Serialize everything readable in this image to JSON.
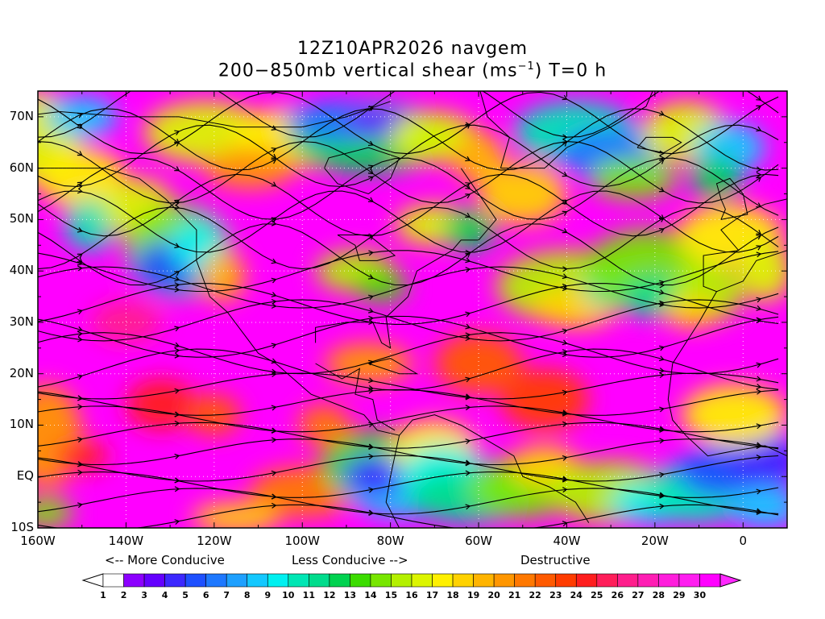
{
  "title": {
    "line1": "12Z10APR2026 navgem",
    "line2_prefix": "200−850mb vertical shear (ms",
    "line2_sup": "−1",
    "line2_suffix": ") T=0 h"
  },
  "axes": {
    "lat_labels": [
      "70N",
      "60N",
      "50N",
      "40N",
      "30N",
      "20N",
      "10N",
      "EQ",
      "10S"
    ],
    "lon_labels": [
      "160W",
      "140W",
      "120W",
      "100W",
      "80W",
      "60W",
      "40W",
      "20W",
      "0"
    ],
    "lon_range": [
      -160,
      10
    ],
    "lat_range": [
      -10,
      75
    ]
  },
  "legend": {
    "more": "<-- More Conducive",
    "less": "Less Conducive -->",
    "destructive": "Destructive",
    "levels": [
      "1",
      "2",
      "3",
      "4",
      "5",
      "6",
      "7",
      "8",
      "9",
      "10",
      "11",
      "12",
      "13",
      "14",
      "15",
      "16",
      "17",
      "18",
      "19",
      "20",
      "21",
      "22",
      "23",
      "24",
      "25",
      "26",
      "27",
      "28",
      "29",
      "30"
    ],
    "colors": [
      "#ffffff",
      "#8c00ff",
      "#6400ff",
      "#3c28ff",
      "#1e50ff",
      "#1e78ff",
      "#1ea0ff",
      "#14c8ff",
      "#00f0f0",
      "#00e6b4",
      "#00dc8c",
      "#00d250",
      "#3cdc00",
      "#78e600",
      "#b4f000",
      "#dcf500",
      "#fff000",
      "#ffd200",
      "#ffb400",
      "#ff9600",
      "#ff7800",
      "#ff5a00",
      "#ff3c00",
      "#ff1e1e",
      "#ff1e5a",
      "#ff1e8c",
      "#ff1eb4",
      "#ff1edc",
      "#ff1ef0",
      "#ff00ff"
    ],
    "under_color": "#ffffff",
    "over_color": "#ff28ff"
  },
  "chart_data": {
    "type": "heatmap",
    "title": "12Z10APR2026 navgem 200-850mb vertical shear (ms-1) T=0 h",
    "variable": "200-850mb vertical shear",
    "units": "ms-1",
    "xlim": [
      -160,
      10
    ],
    "ylim": [
      -10,
      75
    ],
    "x_ticks": [
      "160W",
      "140W",
      "120W",
      "100W",
      "80W",
      "60W",
      "40W",
      "20W",
      "0"
    ],
    "y_ticks": [
      "70N",
      "60N",
      "50N",
      "40N",
      "30N",
      "20N",
      "10N",
      "EQ",
      "10S"
    ],
    "color_levels": [
      1,
      2,
      3,
      4,
      5,
      6,
      7,
      8,
      9,
      10,
      11,
      12,
      13,
      14,
      15,
      16,
      17,
      18,
      19,
      20,
      21,
      22,
      23,
      24,
      25,
      26,
      27,
      28,
      29,
      30
    ],
    "overlay": "streamlines",
    "grid": true
  }
}
